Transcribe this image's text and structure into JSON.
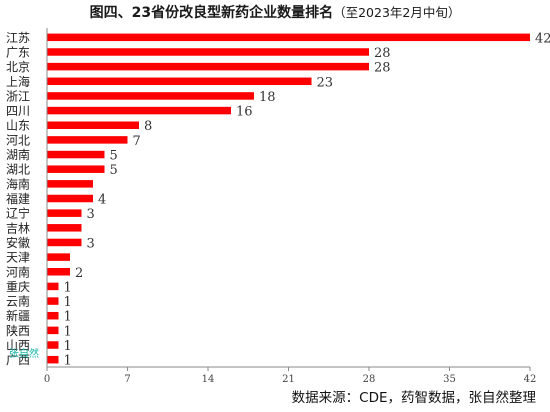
{
  "header": {
    "title": "图四、23省份改良型新药企业数量排名",
    "subtitle": "（至2023年2月中旬）"
  },
  "footer": {
    "source": "数据来源：CDE，药智数据，张自然整理"
  },
  "watermark": "张自然",
  "colors": {
    "bar": "#ff0000",
    "axis": "#888888"
  },
  "chart_data": {
    "type": "bar",
    "orientation": "horizontal",
    "title": "图四、23省份改良型新药企业数量排名",
    "subtitle": "（至2023年2月中旬）",
    "xlim": [
      0,
      42
    ],
    "xticks": [
      0,
      7,
      14,
      21,
      28,
      35,
      42
    ],
    "grid": false,
    "categories": [
      "江苏",
      "广东",
      "北京",
      "上海",
      "浙江",
      "四川",
      "山东",
      "河北",
      "湖南",
      "湖北",
      "海南",
      "福建",
      "辽宁",
      "吉林",
      "安徽",
      "天津",
      "河南",
      "重庆",
      "云南",
      "新疆",
      "陕西",
      "山西",
      "广西"
    ],
    "values": [
      42,
      28,
      28,
      23,
      18,
      16,
      8,
      7,
      5,
      5,
      4,
      4,
      3,
      3,
      3,
      2,
      2,
      1,
      1,
      1,
      1,
      1,
      1
    ],
    "data_labels": [
      "42",
      "28",
      "28",
      "23",
      "18",
      "16",
      "8",
      "7",
      "5",
      "5",
      "",
      "4",
      "3",
      "",
      "3",
      "",
      "2",
      "1",
      "1",
      "1",
      "1",
      "1",
      "1"
    ]
  }
}
